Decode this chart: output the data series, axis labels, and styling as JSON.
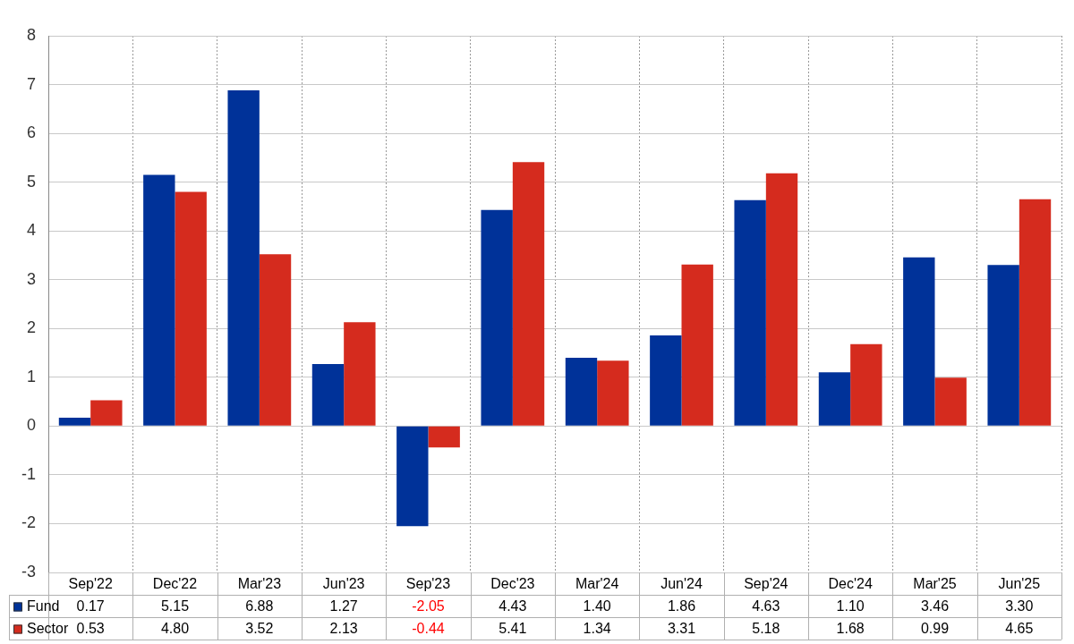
{
  "chart_data": {
    "type": "bar",
    "categories": [
      "Sep'22",
      "Dec'22",
      "Mar'23",
      "Jun'23",
      "Sep'23",
      "Dec'23",
      "Mar'24",
      "Jun'24",
      "Sep'24",
      "Dec'24",
      "Mar'25",
      "Jun'25"
    ],
    "series": [
      {
        "name": "Fund",
        "color": "#003299",
        "values": [
          0.17,
          5.15,
          6.88,
          1.27,
          -2.05,
          4.43,
          1.4,
          1.86,
          4.63,
          1.1,
          3.46,
          3.3
        ],
        "value_labels": [
          "0.17",
          "5.15",
          "6.88",
          "1.27",
          "-2.05",
          "4.43",
          "1.40",
          "1.86",
          "4.63",
          "1.10",
          "3.46",
          "3.30"
        ]
      },
      {
        "name": "Sector",
        "color": "#d52b1e",
        "values": [
          0.53,
          4.8,
          3.52,
          2.13,
          -0.44,
          5.41,
          1.34,
          3.31,
          5.18,
          1.68,
          0.99,
          4.65
        ],
        "value_labels": [
          "0.53",
          "4.80",
          "3.52",
          "2.13",
          "-0.44",
          "5.41",
          "1.34",
          "3.31",
          "5.18",
          "1.68",
          "0.99",
          "4.65"
        ]
      }
    ],
    "ylim": [
      -3,
      8
    ],
    "yticks": [
      -3,
      -2,
      -1,
      0,
      1,
      2,
      3,
      4,
      5,
      6,
      7,
      8
    ],
    "grid": true,
    "legend": "bottom"
  }
}
